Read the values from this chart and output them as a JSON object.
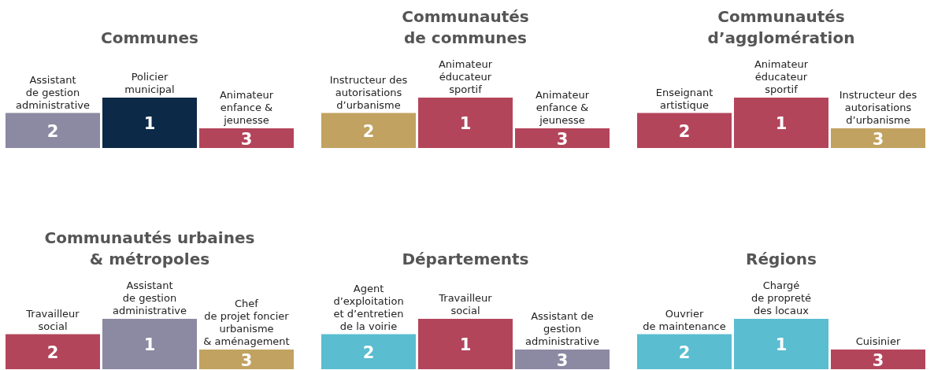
{
  "chart_data": [
    {
      "type": "other",
      "title": "Communes",
      "categories": [
        "Assistant\nde gestion\nadministrative",
        "Policier\nmunicipal",
        "Animateur\nenfance &\njeunesse"
      ],
      "values": [
        2,
        1,
        3
      ],
      "data_labels": true,
      "colors": [
        "#8c89a3",
        "#0c2947",
        "#b3455b"
      ]
    },
    {
      "type": "other",
      "title": "Communautés\nde communes",
      "categories": [
        "Instructeur des\nautorisations\nd’urbanisme",
        "Animateur\néducateur\nsportif",
        "Animateur\nenfance &\njeunesse"
      ],
      "values": [
        2,
        1,
        3
      ],
      "data_labels": true,
      "colors": [
        "#c1a260",
        "#b3455b",
        "#b3455b"
      ]
    },
    {
      "type": "other",
      "title": "Communautés\nd’agglomération",
      "categories": [
        "Enseignant\nartistique",
        "Animateur\néducateur\nsportif",
        "Instructeur des\nautorisations\nd’urbanisme"
      ],
      "values": [
        2,
        1,
        3
      ],
      "data_labels": true,
      "colors": [
        "#b3455b",
        "#b3455b",
        "#c1a260"
      ]
    },
    {
      "type": "other",
      "title": "Communautés urbaines\n& métropoles",
      "categories": [
        "Travailleur\nsocial",
        "Assistant\nde gestion\nadministrative",
        "Chef\nde projet foncier\nurbanisme\n& aménagement"
      ],
      "values": [
        2,
        1,
        3
      ],
      "data_labels": true,
      "colors": [
        "#b3455b",
        "#8c89a3",
        "#c1a260"
      ]
    },
    {
      "type": "other",
      "title": "Départements",
      "categories": [
        "Agent\nd’exploitation\net d’entretien\nde la voirie",
        "Travailleur\nsocial",
        "Assistant de\ngestion\nadministrative"
      ],
      "values": [
        2,
        1,
        3
      ],
      "data_labels": true,
      "colors": [
        "#5abdd0",
        "#b3455b",
        "#8c89a3"
      ]
    },
    {
      "type": "other",
      "title": "Régions",
      "categories": [
        "Ouvrier\nde maintenance",
        "Chargé\nde propreté\ndes locaux",
        "Cuisinier"
      ],
      "values": [
        2,
        1,
        3
      ],
      "data_labels": true,
      "colors": [
        "#5abdd0",
        "#5abdd0",
        "#b3455b"
      ]
    }
  ]
}
